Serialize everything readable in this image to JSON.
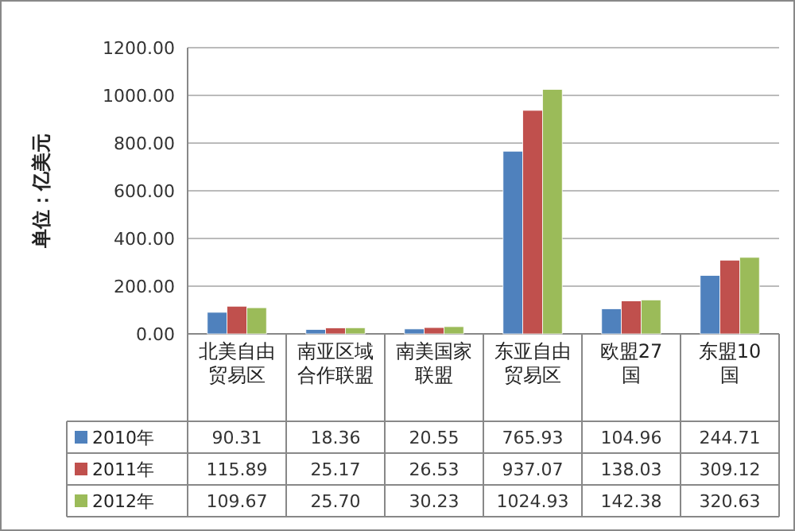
{
  "chart_data": {
    "type": "bar",
    "ylabel": "单位：亿美元",
    "categories": [
      "北美自由贸易区",
      "南亚区域合作联盟",
      "南美国家联盟",
      "东亚自由贸易区",
      "欧盟27国",
      "东盟10国"
    ],
    "series": [
      {
        "name": "2010年",
        "color": "#4f81bd",
        "values": [
          90.31,
          18.36,
          20.55,
          765.93,
          104.96,
          244.71
        ],
        "value_labels": [
          "90.31",
          "18.36",
          "20.55",
          "765.93",
          "104.96",
          "244.71"
        ]
      },
      {
        "name": "2011年",
        "color": "#c0504d",
        "values": [
          115.89,
          25.17,
          26.53,
          937.07,
          138.03,
          309.12
        ],
        "value_labels": [
          "115.89",
          "25.17",
          "26.53",
          "937.07",
          "138.03",
          "309.12"
        ]
      },
      {
        "name": "2012年",
        "color": "#9bbb59",
        "values": [
          109.67,
          25.7,
          30.23,
          1024.93,
          142.38,
          320.63
        ],
        "value_labels": [
          "109.67",
          "25.70",
          "30.23",
          "1024.93",
          "142.38",
          "320.63"
        ]
      }
    ],
    "ylim": [
      0,
      1200
    ],
    "yticks": [
      {
        "value": 0,
        "label": "0.00"
      },
      {
        "value": 200,
        "label": "200.00"
      },
      {
        "value": 400,
        "label": "400.00"
      },
      {
        "value": 600,
        "label": "600.00"
      },
      {
        "value": 800,
        "label": "800.00"
      },
      {
        "value": 1000,
        "label": "1000.00"
      },
      {
        "value": 1200,
        "label": "1200.00"
      }
    ],
    "grid": "y",
    "legend": "bottom"
  }
}
